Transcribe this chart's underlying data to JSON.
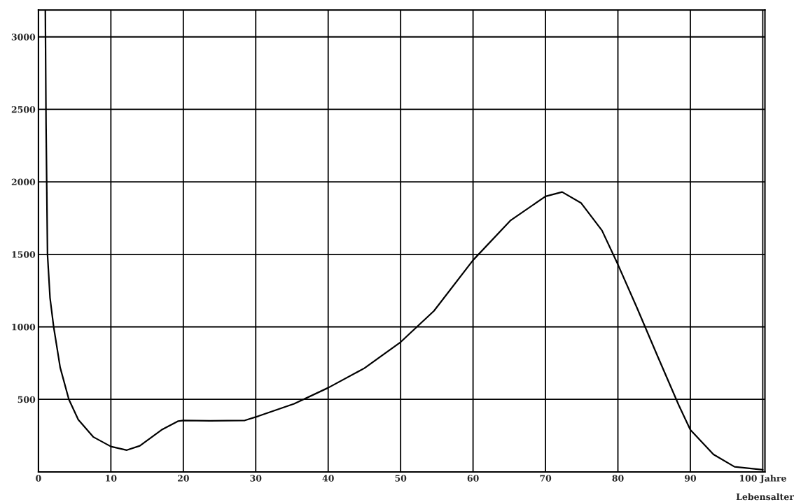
{
  "chart_data": {
    "type": "line",
    "xlabel": "Lebensalter",
    "x": [
      0.95,
      1.05,
      1.25,
      1.6,
      2.1,
      3.0,
      4.2,
      5.5,
      7.6,
      10,
      12.2,
      14,
      17,
      19.3,
      20,
      23.7,
      28.5,
      30.4,
      35.3,
      40,
      45,
      50,
      54.6,
      60,
      65.2,
      70,
      72.3,
      74.9,
      77.8,
      80,
      82.6,
      85.5,
      88.4,
      90,
      93.2,
      96.1,
      100
    ],
    "series": [
      {
        "color": "#000000",
        "values": [
          3180,
          2400,
          1500,
          1200,
          1000,
          720,
          500,
          360,
          240,
          175,
          150,
          180,
          290,
          350,
          355,
          352,
          355,
          385,
          470,
          580,
          715,
          895,
          1110,
          1460,
          1735,
          1900,
          1930,
          1855,
          1665,
          1430,
          1135,
          795,
          460,
          290,
          120,
          35,
          15
        ]
      }
    ],
    "xlim": [
      0,
      100.3
    ],
    "ylim": [
      0,
      3185
    ],
    "xticks": [
      0,
      10,
      20,
      30,
      40,
      50,
      60,
      70,
      80,
      90,
      {
        "value": 100,
        "label": "100 Jahre"
      }
    ],
    "yticks": [
      500,
      1000,
      1500,
      2000,
      2500,
      3000
    ],
    "grid": true,
    "marker": "none",
    "line_style": "solid"
  }
}
